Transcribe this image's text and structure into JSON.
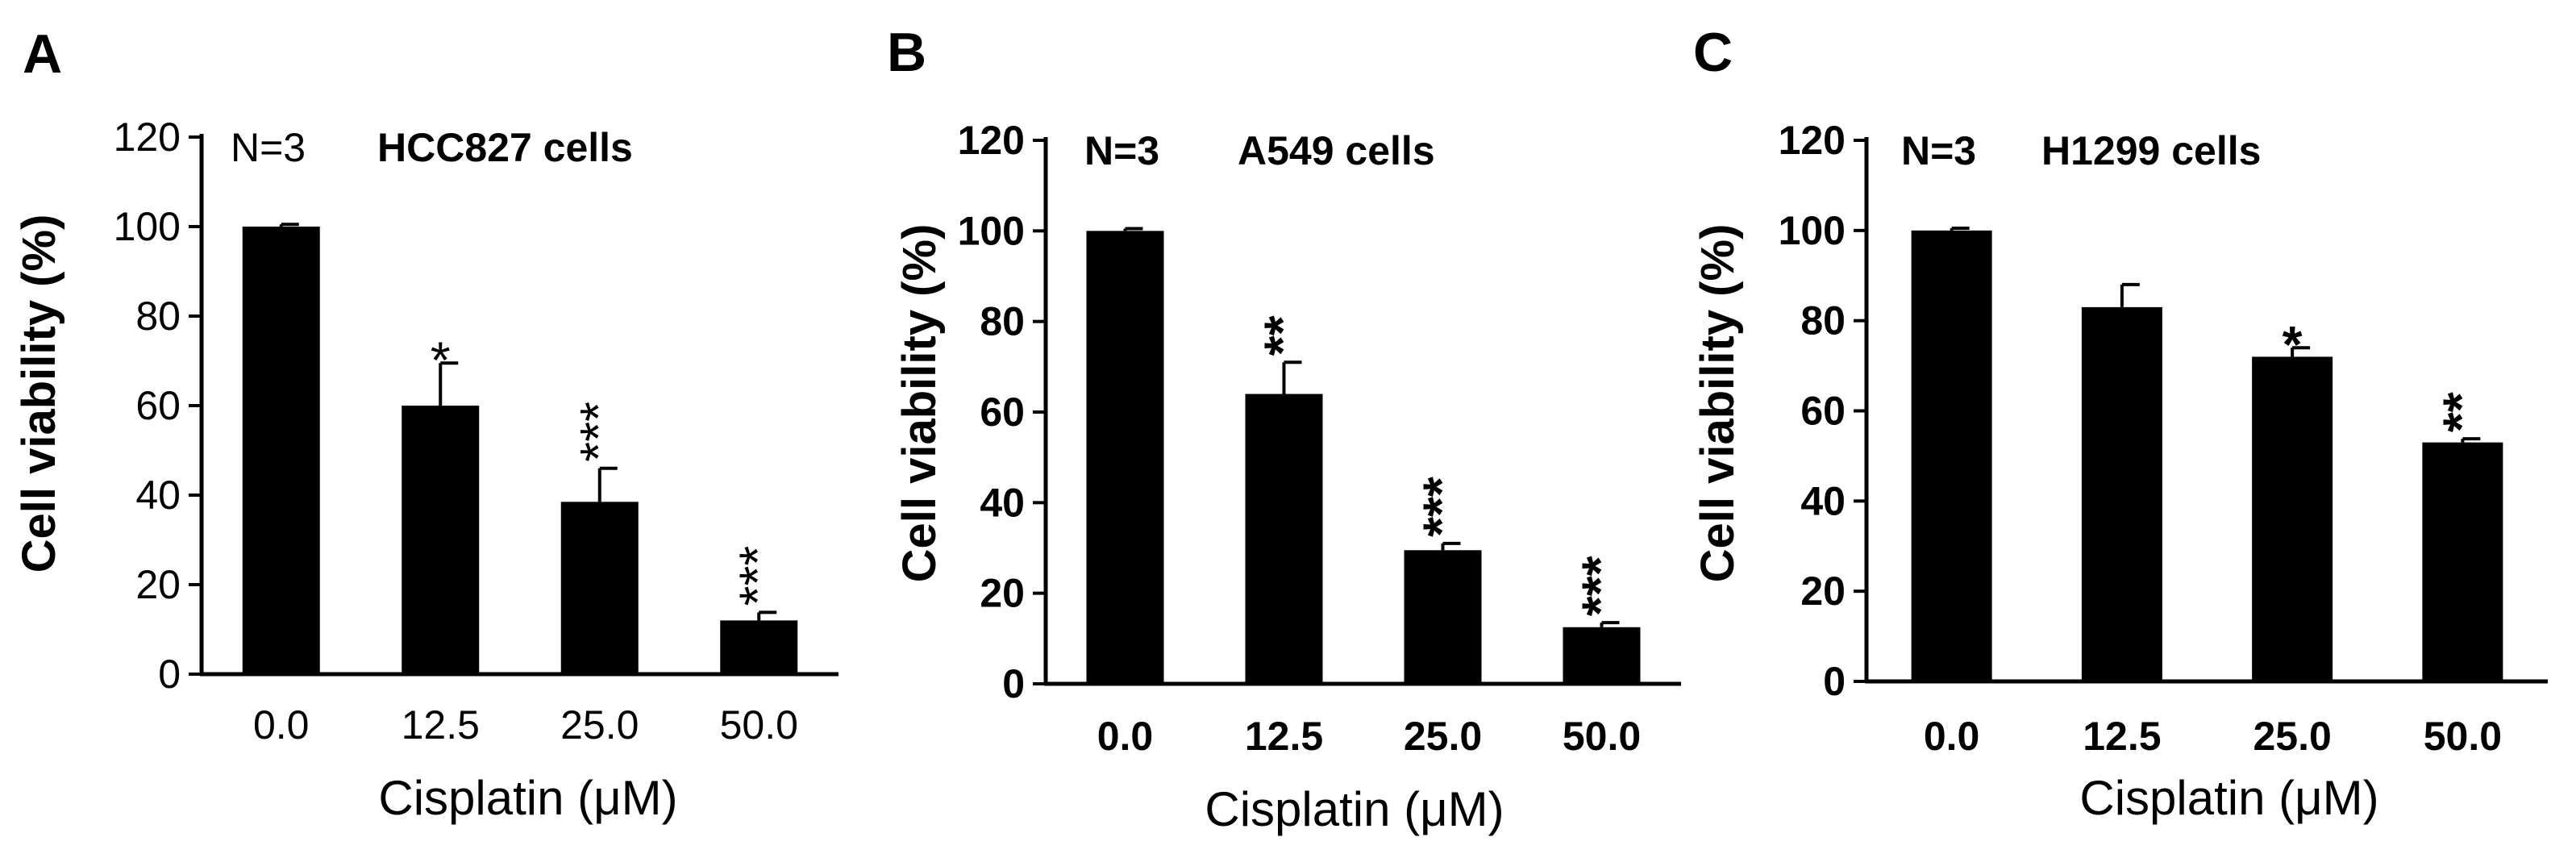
{
  "colors": {
    "bar": "#000000",
    "axis": "#000000",
    "background": "#ffffff"
  },
  "chart_data": [
    {
      "type": "bar",
      "panel": "A",
      "annotation_n": "N=3",
      "title": "HCC827 cells",
      "xlabel": "Cisplatin (μM)",
      "ylabel": "Cell viability (%)",
      "categories": [
        "0.0",
        "12.5",
        "25.0",
        "50.0"
      ],
      "yticks": [
        "0",
        "20",
        "40",
        "60",
        "80",
        "100",
        "120"
      ],
      "ylim": [
        0,
        120
      ],
      "values": [
        100,
        60,
        38.5,
        12
      ],
      "errors": [
        0.5,
        9.5,
        7.5,
        1.8
      ],
      "significance": [
        "",
        "*",
        "***",
        "***"
      ],
      "grid": false,
      "bold_ticks": false
    },
    {
      "type": "bar",
      "panel": "B",
      "annotation_n": "N=3",
      "title": "A549 cells",
      "xlabel": "Cisplatin (μM)",
      "ylabel": "Cell viability (%)",
      "categories": [
        "0.0",
        "12.5",
        "25.0",
        "50.0"
      ],
      "yticks": [
        "0",
        "20",
        "40",
        "60",
        "80",
        "100",
        "120"
      ],
      "ylim": [
        0,
        120
      ],
      "values": [
        100,
        64,
        29.5,
        12.5
      ],
      "errors": [
        0.5,
        7,
        1.5,
        1
      ],
      "significance": [
        "",
        "**",
        "***",
        "***"
      ],
      "grid": false,
      "bold_ticks": true
    },
    {
      "type": "bar",
      "panel": "C",
      "annotation_n": "N=3",
      "title": "H1299 cells",
      "xlabel": "Cisplatin (μM)",
      "ylabel": "Cell viability (%)",
      "categories": [
        "0.0",
        "12.5",
        "25.0",
        "50.0"
      ],
      "yticks": [
        "0",
        "20",
        "40",
        "60",
        "80",
        "100",
        "120"
      ],
      "ylim": [
        0,
        120
      ],
      "values": [
        100,
        83,
        72,
        53
      ],
      "errors": [
        0.5,
        5,
        2,
        0.8
      ],
      "significance": [
        "",
        "",
        "*",
        "**"
      ],
      "grid": false,
      "bold_ticks": true
    }
  ]
}
